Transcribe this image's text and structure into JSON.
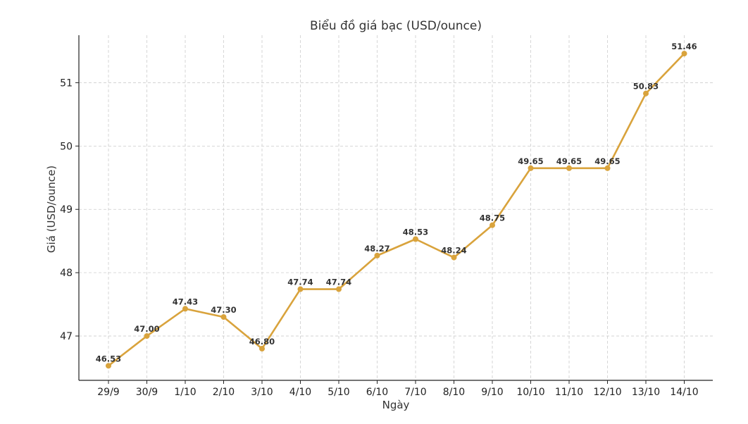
{
  "chart_data": {
    "type": "line",
    "title": "Biểu đồ giá bạc (USD/ounce)",
    "xlabel": "Ngày",
    "ylabel": "Giá (USD/ounce)",
    "categories": [
      "29/9",
      "30/9",
      "1/10",
      "2/10",
      "3/10",
      "4/10",
      "5/10",
      "6/10",
      "7/10",
      "8/10",
      "9/10",
      "10/10",
      "11/10",
      "12/10",
      "13/10",
      "14/10"
    ],
    "series": [
      {
        "values": [
          46.53,
          47.0,
          47.43,
          47.3,
          46.8,
          47.74,
          47.74,
          48.27,
          48.53,
          48.24,
          48.75,
          49.65,
          49.65,
          49.65,
          50.83,
          51.46
        ],
        "labels": [
          "46.53",
          "47.00",
          "47.43",
          "47.30",
          "46.80",
          "47.74",
          "47.74",
          "48.27",
          "48.53",
          "48.24",
          "48.75",
          "49.65",
          "49.65",
          "49.65",
          "50.83",
          "51.46"
        ]
      }
    ],
    "yticks": [
      47,
      48,
      49,
      50,
      51
    ],
    "ylim": [
      46.3,
      51.75
    ],
    "grid": true,
    "colors": {
      "line": "#d9a33c",
      "marker": "#d9a33c"
    }
  }
}
